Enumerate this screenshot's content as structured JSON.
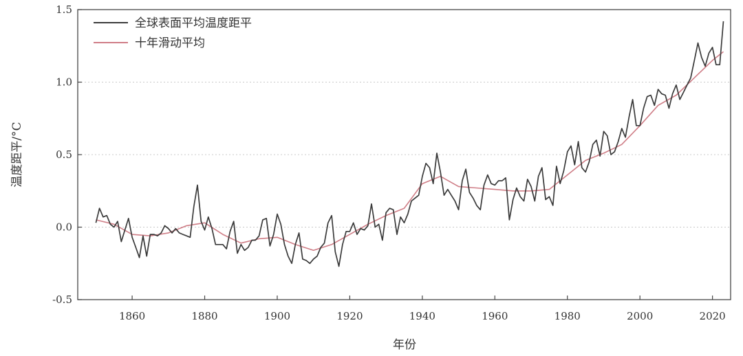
{
  "chart_data": {
    "type": "line",
    "title": "",
    "xlabel": "年份",
    "ylabel": "温度距平/°C",
    "xlim": [
      1845,
      2025
    ],
    "ylim": [
      -0.5,
      1.5
    ],
    "x_ticks": [
      1860,
      1880,
      1900,
      1920,
      1940,
      1960,
      1980,
      2000,
      2020
    ],
    "x_tick_labels": [
      "1860",
      "1880",
      "1900",
      "1920",
      "1940",
      "1960",
      "1980",
      "2000",
      "2020"
    ],
    "y_ticks": [
      -0.5,
      0.0,
      0.5,
      1.0,
      1.5
    ],
    "y_tick_labels": [
      "-0.5",
      "0.0",
      "0.5",
      "1.0",
      "1.5"
    ],
    "grid": true,
    "legend_position": "top-left",
    "series": [
      {
        "name": "全球表面平均温度距平",
        "color": "#3a3a3a",
        "x": [
          1850,
          1851,
          1852,
          1853,
          1854,
          1855,
          1856,
          1857,
          1858,
          1859,
          1860,
          1861,
          1862,
          1863,
          1864,
          1865,
          1866,
          1867,
          1868,
          1869,
          1870,
          1871,
          1872,
          1873,
          1874,
          1875,
          1876,
          1877,
          1878,
          1879,
          1880,
          1881,
          1882,
          1883,
          1884,
          1885,
          1886,
          1887,
          1888,
          1889,
          1890,
          1891,
          1892,
          1893,
          1894,
          1895,
          1896,
          1897,
          1898,
          1899,
          1900,
          1901,
          1902,
          1903,
          1904,
          1905,
          1906,
          1907,
          1908,
          1909,
          1910,
          1911,
          1912,
          1913,
          1914,
          1915,
          1916,
          1917,
          1918,
          1919,
          1920,
          1921,
          1922,
          1923,
          1924,
          1925,
          1926,
          1927,
          1928,
          1929,
          1930,
          1931,
          1932,
          1933,
          1934,
          1935,
          1936,
          1937,
          1938,
          1939,
          1940,
          1941,
          1942,
          1943,
          1944,
          1945,
          1946,
          1947,
          1948,
          1949,
          1950,
          1951,
          1952,
          1953,
          1954,
          1955,
          1956,
          1957,
          1958,
          1959,
          1960,
          1961,
          1962,
          1963,
          1964,
          1965,
          1966,
          1967,
          1968,
          1969,
          1970,
          1971,
          1972,
          1973,
          1974,
          1975,
          1976,
          1977,
          1978,
          1979,
          1980,
          1981,
          1982,
          1983,
          1984,
          1985,
          1986,
          1987,
          1988,
          1989,
          1990,
          1991,
          1992,
          1993,
          1994,
          1995,
          1996,
          1997,
          1998,
          1999,
          2000,
          2001,
          2002,
          2003,
          2004,
          2005,
          2006,
          2007,
          2008,
          2009,
          2010,
          2011,
          2012,
          2013,
          2014,
          2015,
          2016,
          2017,
          2018,
          2019,
          2020,
          2021,
          2022,
          2023
        ],
        "values": [
          0.03,
          0.13,
          0.07,
          0.08,
          0.02,
          0.0,
          0.04,
          -0.1,
          -0.02,
          0.06,
          -0.07,
          -0.14,
          -0.21,
          -0.06,
          -0.2,
          -0.05,
          -0.05,
          -0.06,
          -0.04,
          0.01,
          -0.01,
          -0.04,
          -0.01,
          -0.04,
          -0.05,
          -0.06,
          -0.07,
          0.14,
          0.29,
          0.04,
          -0.02,
          0.07,
          -0.01,
          -0.12,
          -0.12,
          -0.12,
          -0.15,
          -0.03,
          0.04,
          -0.18,
          -0.12,
          -0.16,
          -0.14,
          -0.09,
          -0.09,
          -0.06,
          0.05,
          0.06,
          -0.13,
          -0.05,
          0.09,
          0.02,
          -0.12,
          -0.2,
          -0.25,
          -0.12,
          -0.04,
          -0.22,
          -0.23,
          -0.25,
          -0.22,
          -0.2,
          -0.14,
          -0.11,
          0.03,
          0.08,
          -0.17,
          -0.27,
          -0.12,
          -0.03,
          -0.03,
          0.03,
          -0.05,
          -0.01,
          -0.02,
          0.01,
          0.16,
          0.0,
          0.02,
          -0.09,
          0.1,
          0.13,
          0.12,
          -0.05,
          0.07,
          0.03,
          0.09,
          0.18,
          0.2,
          0.22,
          0.35,
          0.44,
          0.41,
          0.3,
          0.51,
          0.38,
          0.22,
          0.26,
          0.22,
          0.18,
          0.12,
          0.32,
          0.4,
          0.24,
          0.2,
          0.15,
          0.12,
          0.29,
          0.36,
          0.3,
          0.29,
          0.32,
          0.32,
          0.34,
          0.05,
          0.19,
          0.27,
          0.21,
          0.18,
          0.33,
          0.28,
          0.18,
          0.35,
          0.41,
          0.19,
          0.21,
          0.15,
          0.42,
          0.3,
          0.39,
          0.52,
          0.56,
          0.43,
          0.59,
          0.41,
          0.38,
          0.45,
          0.57,
          0.6,
          0.49,
          0.66,
          0.63,
          0.5,
          0.52,
          0.59,
          0.68,
          0.62,
          0.76,
          0.88,
          0.7,
          0.7,
          0.82,
          0.9,
          0.91,
          0.84,
          0.95,
          0.92,
          0.91,
          0.82,
          0.92,
          0.98,
          0.88,
          0.93,
          0.98,
          1.03,
          1.15,
          1.27,
          1.17,
          1.11,
          1.2,
          1.24,
          1.12,
          1.12,
          1.42
        ]
      },
      {
        "name": "十年滑动平均",
        "color": "#cf7d86",
        "x": [
          1850,
          1855,
          1860,
          1865,
          1870,
          1875,
          1880,
          1885,
          1890,
          1895,
          1900,
          1905,
          1910,
          1915,
          1920,
          1925,
          1930,
          1935,
          1940,
          1945,
          1950,
          1955,
          1960,
          1965,
          1970,
          1975,
          1980,
          1985,
          1990,
          1995,
          2000,
          2005,
          2010,
          2015,
          2020,
          2023
        ],
        "values": [
          0.05,
          0.02,
          -0.05,
          -0.06,
          -0.04,
          0.01,
          0.03,
          -0.05,
          -0.11,
          -0.08,
          -0.07,
          -0.12,
          -0.16,
          -0.12,
          -0.05,
          0.02,
          0.08,
          0.13,
          0.3,
          0.35,
          0.28,
          0.27,
          0.26,
          0.25,
          0.25,
          0.26,
          0.36,
          0.46,
          0.51,
          0.57,
          0.7,
          0.84,
          0.91,
          1.03,
          1.15,
          1.21
        ]
      }
    ]
  }
}
